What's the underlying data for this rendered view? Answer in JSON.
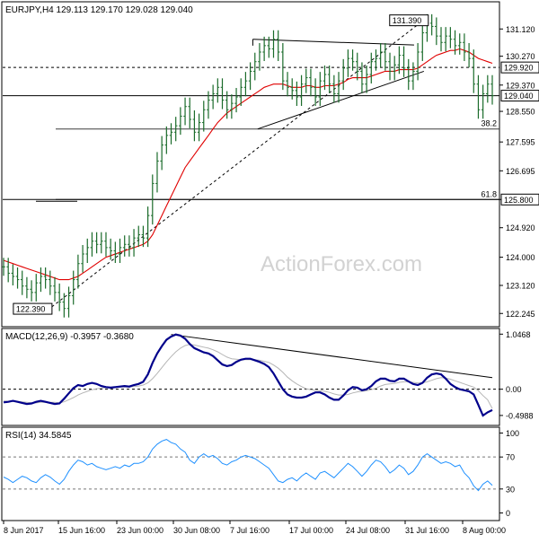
{
  "chart_data": {
    "type": "line",
    "instrument_header": "EURJPY,H4  129.113  129.170  129.028  129.040",
    "watermark": "ActionForex.com",
    "x_ticks": [
      "8 Jun 2017",
      "15 Jun 16:00",
      "23 Jun 00:00",
      "30 Jun 08:00",
      "7 Jul 16:00",
      "17 Jul 00:00",
      "24 Jul 08:00",
      "31 Jul 16:00",
      "8 Aug 00:00"
    ],
    "price_panel": {
      "ylim": [
        122.0,
        131.8
      ],
      "y_ticks": [
        131.12,
        130.27,
        129.37,
        128.55,
        127.595,
        126.695,
        125.8,
        124.92,
        124.0,
        123.12,
        122.245
      ],
      "y_tick_labels": [
        "131.120",
        "130.270",
        "129.370",
        "128.550",
        "127.595",
        "126.695",
        "125.800",
        "124.920",
        "124.000",
        "123.120",
        "122.245"
      ],
      "highlight_levels": [
        {
          "value": 129.92,
          "label": "129.920",
          "style": "dashed"
        },
        {
          "value": 129.04,
          "label": "129.040",
          "style": "solid"
        },
        {
          "value": 125.8,
          "label": "125.800",
          "style": "solid"
        }
      ],
      "fib_levels": [
        {
          "value": 128.0,
          "label": "38.2"
        },
        {
          "value": 125.8,
          "label": "61.8"
        }
      ],
      "annotations": [
        {
          "label": "131.390",
          "value": 131.39
        },
        {
          "label": "122.390",
          "value": 122.39
        }
      ],
      "close": [
        123.7,
        123.5,
        123.4,
        123.3,
        123.1,
        123.0,
        122.9,
        123.2,
        123.4,
        123.3,
        123.1,
        122.9,
        122.6,
        122.4,
        122.8,
        123.3,
        123.8,
        124.1,
        124.3,
        124.5,
        124.4,
        124.5,
        124.3,
        124.2,
        124.1,
        124.3,
        124.4,
        124.3,
        124.6,
        124.7,
        124.6,
        125.3,
        126.3,
        127.0,
        127.5,
        127.8,
        127.9,
        128.1,
        128.4,
        128.7,
        128.3,
        127.9,
        128.2,
        128.6,
        128.9,
        129.1,
        129.3,
        128.9,
        128.6,
        128.8,
        129.0,
        129.3,
        129.5,
        129.8,
        130.1,
        130.4,
        130.6,
        130.5,
        130.8,
        130.4,
        129.5,
        129.3,
        129.2,
        129.0,
        129.4,
        129.6,
        129.3,
        129.0,
        129.5,
        129.7,
        129.4,
        129.1,
        129.5,
        129.9,
        130.2,
        130.1,
        129.8,
        129.4,
        129.7,
        130.1,
        130.2,
        130.4,
        130.1,
        129.8,
        130.0,
        130.3,
        129.9,
        129.5,
        129.8,
        130.4,
        131.0,
        131.3,
        131.2,
        130.9,
        130.7,
        130.9,
        130.8,
        130.6,
        130.7,
        130.4,
        130.2,
        129.4,
        128.6,
        129.1,
        129.4,
        129.04
      ],
      "ma": [
        123.9,
        123.85,
        123.8,
        123.75,
        123.7,
        123.65,
        123.6,
        123.55,
        123.5,
        123.45,
        123.4,
        123.35,
        123.3,
        123.3,
        123.3,
        123.35,
        123.4,
        123.5,
        123.6,
        123.7,
        123.8,
        123.9,
        124.0,
        124.05,
        124.1,
        124.15,
        124.2,
        124.25,
        124.3,
        124.35,
        124.4,
        124.5,
        124.7,
        125.0,
        125.3,
        125.6,
        125.9,
        126.2,
        126.5,
        126.8,
        127.0,
        127.2,
        127.4,
        127.6,
        127.8,
        128.0,
        128.2,
        128.35,
        128.5,
        128.6,
        128.7,
        128.8,
        128.9,
        129.0,
        129.1,
        129.2,
        129.3,
        129.35,
        129.4,
        129.4,
        129.4,
        129.35,
        129.3,
        129.3,
        129.3,
        129.35,
        129.35,
        129.3,
        129.3,
        129.35,
        129.35,
        129.35,
        129.4,
        129.45,
        129.55,
        129.6,
        129.6,
        129.6,
        129.6,
        129.65,
        129.7,
        129.75,
        129.8,
        129.8,
        129.8,
        129.85,
        129.85,
        129.85,
        129.85,
        129.9,
        130.0,
        130.1,
        130.2,
        130.3,
        130.35,
        130.4,
        130.45,
        130.45,
        130.5,
        130.45,
        130.4,
        130.3,
        130.2,
        130.15,
        130.1,
        130.05
      ]
    },
    "macd_panel": {
      "label": "MACD(12,26,9) -0.3957 -0.3680",
      "ylim": [
        -0.62,
        1.12
      ],
      "y_ticks": [
        1.0468,
        0.0,
        -0.4988
      ],
      "y_tick_labels": [
        "1.0468",
        "0.00",
        "-0.4988"
      ],
      "macd": [
        -0.25,
        -0.24,
        -0.22,
        -0.24,
        -0.26,
        -0.28,
        -0.27,
        -0.24,
        -0.22,
        -0.24,
        -0.26,
        -0.28,
        -0.27,
        -0.18,
        -0.08,
        0.02,
        0.08,
        0.06,
        0.1,
        0.12,
        0.1,
        0.06,
        0.04,
        0.03,
        0.04,
        0.05,
        0.06,
        0.05,
        0.08,
        0.1,
        0.14,
        0.28,
        0.5,
        0.68,
        0.82,
        0.94,
        1.0,
        1.04,
        1.02,
        0.96,
        0.86,
        0.78,
        0.74,
        0.7,
        0.68,
        0.63,
        0.55,
        0.47,
        0.44,
        0.46,
        0.52,
        0.56,
        0.58,
        0.58,
        0.55,
        0.52,
        0.48,
        0.42,
        0.3,
        0.15,
        0.0,
        -0.1,
        -0.14,
        -0.16,
        -0.16,
        -0.14,
        -0.1,
        -0.06,
        -0.06,
        -0.1,
        -0.16,
        -0.2,
        -0.2,
        -0.12,
        -0.02,
        0.04,
        0.03,
        -0.02,
        0.0,
        0.06,
        0.15,
        0.2,
        0.2,
        0.16,
        0.15,
        0.2,
        0.2,
        0.15,
        0.1,
        0.08,
        0.12,
        0.22,
        0.28,
        0.3,
        0.28,
        0.2,
        0.1,
        0.04,
        0.0,
        -0.02,
        -0.04,
        -0.1,
        -0.3,
        -0.5,
        -0.44,
        -0.3957
      ],
      "signal": [
        -0.22,
        -0.23,
        -0.23,
        -0.23,
        -0.24,
        -0.25,
        -0.26,
        -0.26,
        -0.25,
        -0.25,
        -0.25,
        -0.25,
        -0.26,
        -0.24,
        -0.2,
        -0.16,
        -0.11,
        -0.07,
        -0.04,
        -0.01,
        0.01,
        0.02,
        0.03,
        0.03,
        0.03,
        0.04,
        0.04,
        0.04,
        0.05,
        0.06,
        0.08,
        0.12,
        0.2,
        0.3,
        0.41,
        0.52,
        0.62,
        0.71,
        0.78,
        0.83,
        0.85,
        0.84,
        0.82,
        0.8,
        0.78,
        0.75,
        0.71,
        0.66,
        0.61,
        0.58,
        0.57,
        0.56,
        0.56,
        0.56,
        0.56,
        0.55,
        0.53,
        0.51,
        0.46,
        0.4,
        0.32,
        0.23,
        0.16,
        0.1,
        0.05,
        0.01,
        -0.01,
        -0.02,
        -0.03,
        -0.04,
        -0.06,
        -0.09,
        -0.11,
        -0.11,
        -0.1,
        -0.07,
        -0.05,
        -0.04,
        -0.03,
        -0.01,
        0.02,
        0.06,
        0.09,
        0.1,
        0.11,
        0.13,
        0.14,
        0.14,
        0.13,
        0.12,
        0.12,
        0.14,
        0.17,
        0.2,
        0.22,
        0.21,
        0.19,
        0.16,
        0.13,
        0.1,
        0.07,
        0.04,
        -0.03,
        -0.12,
        -0.2,
        -0.368
      ],
      "trendline": [
        [
          36,
          1.04
        ],
        [
          105,
          0.22
        ]
      ]
    },
    "rsi_panel": {
      "label": "RSI(14) 34.5845",
      "ylim": [
        -5,
        105
      ],
      "y_ticks": [
        100,
        70,
        30,
        0
      ],
      "y_tick_labels": [
        "100",
        "70",
        "30",
        "0"
      ],
      "dashed_levels": [
        70,
        30
      ],
      "rsi": [
        45,
        42,
        38,
        42,
        46,
        44,
        40,
        38,
        44,
        48,
        45,
        40,
        36,
        42,
        52,
        60,
        66,
        64,
        60,
        62,
        58,
        56,
        54,
        56,
        58,
        56,
        60,
        58,
        62,
        62,
        64,
        70,
        80,
        86,
        90,
        92,
        88,
        86,
        80,
        76,
        66,
        62,
        70,
        74,
        70,
        72,
        68,
        62,
        60,
        64,
        66,
        70,
        72,
        70,
        68,
        64,
        60,
        56,
        48,
        40,
        38,
        42,
        44,
        40,
        46,
        50,
        46,
        42,
        50,
        52,
        48,
        44,
        50,
        56,
        62,
        58,
        52,
        46,
        52,
        60,
        66,
        64,
        58,
        50,
        54,
        60,
        56,
        48,
        52,
        60,
        70,
        74,
        70,
        66,
        62,
        64,
        62,
        58,
        60,
        50,
        44,
        34,
        28,
        36,
        40,
        34.5845
      ]
    }
  }
}
